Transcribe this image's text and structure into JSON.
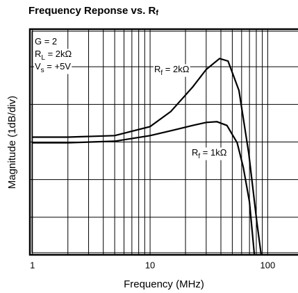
{
  "chart_data": {
    "type": "line",
    "title": {
      "main": "Frequency Reponse vs. R",
      "sub": "f"
    },
    "xlabel": "Frequency (MHz)",
    "ylabel": "Magnitude (1dB/div)",
    "xscale": "log",
    "xlim": [
      0.95,
      181
    ],
    "xticks": [
      1,
      10,
      100
    ],
    "ylim": [
      0,
      6
    ],
    "yticks": [
      0,
      1,
      2,
      3,
      4,
      5,
      6
    ],
    "grid": true,
    "minor_grid": true,
    "series": [
      {
        "name": {
          "main": "R",
          "sub": "f",
          "rest": " = 2kΩ"
        },
        "color": "#000000",
        "x": [
          1,
          2,
          5,
          10,
          15,
          23,
          30,
          39,
          46,
          57,
          69,
          81,
          88
        ],
        "values": [
          3.13,
          3.13,
          3.17,
          3.41,
          3.81,
          4.46,
          4.93,
          5.22,
          5.15,
          4.37,
          2.7,
          0.85,
          0
        ]
      },
      {
        "name": {
          "main": "R",
          "sub": "f",
          "rest": " = 1kΩ"
        },
        "color": "#000000",
        "x": [
          1,
          2,
          5,
          10,
          15,
          23,
          30,
          37,
          45,
          55,
          62,
          70,
          77
        ],
        "values": [
          2.98,
          2.98,
          3.02,
          3.17,
          3.3,
          3.44,
          3.52,
          3.54,
          3.44,
          2.98,
          2.33,
          1.41,
          0
        ]
      }
    ],
    "annotations": [
      {
        "main": "G = 2"
      },
      {
        "main": "R",
        "sub": "L",
        "rest": " = 2kΩ"
      },
      {
        "main": "V",
        "sub": "s",
        "rest": " = +5V"
      }
    ]
  }
}
